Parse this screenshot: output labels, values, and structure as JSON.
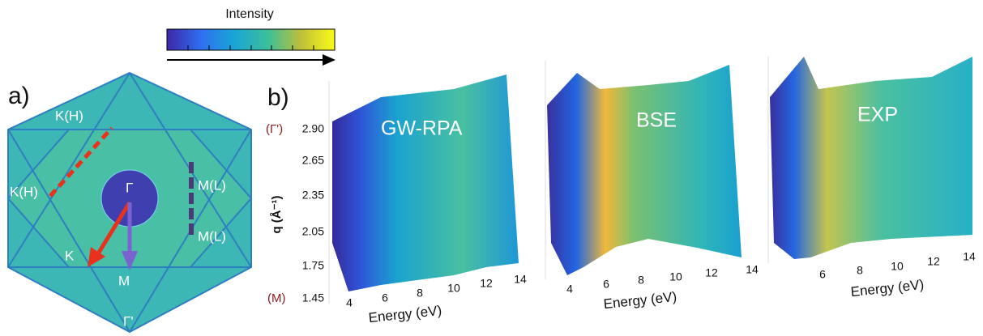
{
  "colorbar": {
    "title": "Intensity"
  },
  "panel_a": {
    "label": "a)",
    "points": [
      "K(H)",
      "K(H)",
      "M(L)",
      "M(L)",
      "Γ",
      "K",
      "M",
      "Γ'"
    ]
  },
  "panel_b": {
    "label": "b)",
    "y_axis": {
      "label": "q (Å⁻¹)",
      "ticks": [
        "2.90",
        "2.65",
        "2.35",
        "2.05",
        "1.75",
        "1.45"
      ],
      "top_point": "(Γ')",
      "bottom_point": "(M)"
    },
    "plots": [
      {
        "title": "GW-RPA",
        "x_label": "Energy (eV)",
        "x_ticks": [
          "4",
          "6",
          "8",
          "10",
          "12",
          "14"
        ]
      },
      {
        "title": "BSE",
        "x_label": "Energy (eV)",
        "x_ticks": [
          "4",
          "6",
          "8",
          "10",
          "12",
          "14"
        ]
      },
      {
        "title": "EXP",
        "x_label": "Energy (eV)",
        "x_ticks": [
          "6",
          "8",
          "10",
          "12",
          "14"
        ]
      }
    ]
  }
}
